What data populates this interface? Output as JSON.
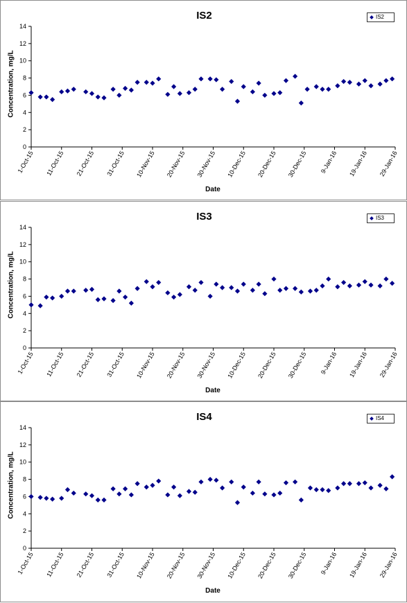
{
  "colors": {
    "marker": "#00008b",
    "axis": "#000000",
    "frame": "#8c8c8c"
  },
  "chart_data": [
    {
      "type": "scatter",
      "title": "IS2",
      "xlabel": "Date",
      "ylabel": "Concentration, mg/L",
      "ylim": [
        0,
        14
      ],
      "y_ticks": [
        "0",
        "2",
        "4",
        "6",
        "8",
        "10",
        "12",
        "14"
      ],
      "x_range": [
        "2015-10-01",
        "2016-01-29"
      ],
      "x_ticks": [
        "1-Oct-15",
        "11-Oct-15",
        "21-Oct-15",
        "31-Oct-15",
        "10-Nov-15",
        "20-Nov-15",
        "30-Nov-15",
        "10-Dec-15",
        "20-Dec-15",
        "30-Dec-15",
        "9-Jan-16",
        "19-Jan-16",
        "29-Jan-16"
      ],
      "legend": "top-right",
      "grid": false,
      "series": [
        {
          "name": "IS2",
          "marker": "diamond",
          "points": [
            {
              "x": "2015-10-01",
              "y": 6.3
            },
            {
              "x": "2015-10-04",
              "y": 5.8
            },
            {
              "x": "2015-10-06",
              "y": 5.8
            },
            {
              "x": "2015-10-08",
              "y": 5.5
            },
            {
              "x": "2015-10-11",
              "y": 6.4
            },
            {
              "x": "2015-10-13",
              "y": 6.5
            },
            {
              "x": "2015-10-15",
              "y": 6.7
            },
            {
              "x": "2015-10-19",
              "y": 6.4
            },
            {
              "x": "2015-10-21",
              "y": 6.2
            },
            {
              "x": "2015-10-23",
              "y": 5.8
            },
            {
              "x": "2015-10-25",
              "y": 5.7
            },
            {
              "x": "2015-10-28",
              "y": 6.7
            },
            {
              "x": "2015-10-30",
              "y": 6.0
            },
            {
              "x": "2015-11-01",
              "y": 6.8
            },
            {
              "x": "2015-11-03",
              "y": 6.6
            },
            {
              "x": "2015-11-05",
              "y": 7.5
            },
            {
              "x": "2015-11-08",
              "y": 7.5
            },
            {
              "x": "2015-11-10",
              "y": 7.4
            },
            {
              "x": "2015-11-12",
              "y": 7.9
            },
            {
              "x": "2015-11-15",
              "y": 6.1
            },
            {
              "x": "2015-11-17",
              "y": 7.0
            },
            {
              "x": "2015-11-19",
              "y": 6.2
            },
            {
              "x": "2015-11-22",
              "y": 6.3
            },
            {
              "x": "2015-11-24",
              "y": 6.7
            },
            {
              "x": "2015-11-26",
              "y": 7.9
            },
            {
              "x": "2015-11-29",
              "y": 7.9
            },
            {
              "x": "2015-12-01",
              "y": 7.8
            },
            {
              "x": "2015-12-03",
              "y": 6.7
            },
            {
              "x": "2015-12-06",
              "y": 7.6
            },
            {
              "x": "2015-12-08",
              "y": 5.3
            },
            {
              "x": "2015-12-10",
              "y": 7.0
            },
            {
              "x": "2015-12-13",
              "y": 6.4
            },
            {
              "x": "2015-12-15",
              "y": 7.4
            },
            {
              "x": "2015-12-17",
              "y": 6.0
            },
            {
              "x": "2015-12-20",
              "y": 6.2
            },
            {
              "x": "2015-12-22",
              "y": 6.3
            },
            {
              "x": "2015-12-24",
              "y": 7.7
            },
            {
              "x": "2015-12-27",
              "y": 8.2
            },
            {
              "x": "2015-12-29",
              "y": 5.1
            },
            {
              "x": "2015-12-31",
              "y": 6.7
            },
            {
              "x": "2016-01-03",
              "y": 7.0
            },
            {
              "x": "2016-01-05",
              "y": 6.7
            },
            {
              "x": "2016-01-07",
              "y": 6.7
            },
            {
              "x": "2016-01-10",
              "y": 7.1
            },
            {
              "x": "2016-01-12",
              "y": 7.6
            },
            {
              "x": "2016-01-14",
              "y": 7.5
            },
            {
              "x": "2016-01-17",
              "y": 7.3
            },
            {
              "x": "2016-01-19",
              "y": 7.7
            },
            {
              "x": "2016-01-21",
              "y": 7.1
            },
            {
              "x": "2016-01-24",
              "y": 7.3
            },
            {
              "x": "2016-01-26",
              "y": 7.7
            },
            {
              "x": "2016-01-28",
              "y": 7.9
            }
          ]
        }
      ]
    },
    {
      "type": "scatter",
      "title": "IS3",
      "xlabel": "Date",
      "ylabel": "Concentration, mg/L",
      "ylim": [
        0,
        14
      ],
      "y_ticks": [
        "0",
        "2",
        "4",
        "6",
        "8",
        "10",
        "12",
        "14"
      ],
      "x_range": [
        "2015-10-01",
        "2016-01-29"
      ],
      "x_ticks": [
        "1-Oct-15",
        "11-Oct-15",
        "21-Oct-15",
        "31-Oct-15",
        "10-Nov-15",
        "20-Nov-15",
        "30-Nov-15",
        "10-Dec-15",
        "20-Dec-15",
        "30-Dec-15",
        "9-Jan-16",
        "19-Jan-16",
        "29-Jan-16"
      ],
      "legend": "top-right",
      "grid": false,
      "series": [
        {
          "name": "IS3",
          "marker": "diamond",
          "points": [
            {
              "x": "2015-10-01",
              "y": 5.0
            },
            {
              "x": "2015-10-04",
              "y": 4.9
            },
            {
              "x": "2015-10-06",
              "y": 5.9
            },
            {
              "x": "2015-10-08",
              "y": 5.8
            },
            {
              "x": "2015-10-11",
              "y": 6.0
            },
            {
              "x": "2015-10-13",
              "y": 6.6
            },
            {
              "x": "2015-10-15",
              "y": 6.6
            },
            {
              "x": "2015-10-19",
              "y": 6.7
            },
            {
              "x": "2015-10-21",
              "y": 6.8
            },
            {
              "x": "2015-10-23",
              "y": 5.6
            },
            {
              "x": "2015-10-25",
              "y": 5.7
            },
            {
              "x": "2015-10-28",
              "y": 5.5
            },
            {
              "x": "2015-10-30",
              "y": 6.6
            },
            {
              "x": "2015-11-01",
              "y": 5.9
            },
            {
              "x": "2015-11-03",
              "y": 5.2
            },
            {
              "x": "2015-11-05",
              "y": 6.9
            },
            {
              "x": "2015-11-08",
              "y": 7.7
            },
            {
              "x": "2015-11-10",
              "y": 7.1
            },
            {
              "x": "2015-11-12",
              "y": 7.6
            },
            {
              "x": "2015-11-15",
              "y": 6.4
            },
            {
              "x": "2015-11-17",
              "y": 5.9
            },
            {
              "x": "2015-11-19",
              "y": 6.2
            },
            {
              "x": "2015-11-22",
              "y": 7.1
            },
            {
              "x": "2015-11-24",
              "y": 6.7
            },
            {
              "x": "2015-11-26",
              "y": 7.6
            },
            {
              "x": "2015-11-29",
              "y": 6.0
            },
            {
              "x": "2015-12-01",
              "y": 7.4
            },
            {
              "x": "2015-12-03",
              "y": 7.0
            },
            {
              "x": "2015-12-06",
              "y": 7.0
            },
            {
              "x": "2015-12-08",
              "y": 6.6
            },
            {
              "x": "2015-12-10",
              "y": 7.4
            },
            {
              "x": "2015-12-13",
              "y": 6.7
            },
            {
              "x": "2015-12-15",
              "y": 7.4
            },
            {
              "x": "2015-12-17",
              "y": 6.3
            },
            {
              "x": "2015-12-20",
              "y": 8.0
            },
            {
              "x": "2015-12-22",
              "y": 6.7
            },
            {
              "x": "2015-12-24",
              "y": 6.9
            },
            {
              "x": "2015-12-27",
              "y": 6.9
            },
            {
              "x": "2015-12-29",
              "y": 6.5
            },
            {
              "x": "2016-01-01",
              "y": 6.6
            },
            {
              "x": "2016-01-03",
              "y": 6.7
            },
            {
              "x": "2016-01-05",
              "y": 7.2
            },
            {
              "x": "2016-01-07",
              "y": 8.0
            },
            {
              "x": "2016-01-10",
              "y": 7.1
            },
            {
              "x": "2016-01-12",
              "y": 7.6
            },
            {
              "x": "2016-01-14",
              "y": 7.2
            },
            {
              "x": "2016-01-17",
              "y": 7.3
            },
            {
              "x": "2016-01-19",
              "y": 7.7
            },
            {
              "x": "2016-01-21",
              "y": 7.3
            },
            {
              "x": "2016-01-24",
              "y": 7.2
            },
            {
              "x": "2016-01-26",
              "y": 8.0
            },
            {
              "x": "2016-01-28",
              "y": 7.5
            }
          ]
        }
      ]
    },
    {
      "type": "scatter",
      "title": "IS4",
      "xlabel": "Date",
      "ylabel": "Concentration, mg/L",
      "ylim": [
        0,
        14
      ],
      "y_ticks": [
        "0",
        "2",
        "4",
        "6",
        "8",
        "10",
        "12",
        "14"
      ],
      "x_range": [
        "2015-10-01",
        "2016-01-29"
      ],
      "x_ticks": [
        "1-Oct-15",
        "11-Oct-15",
        "21-Oct-15",
        "31-Oct-15",
        "10-Nov-15",
        "20-Nov-15",
        "30-Nov-15",
        "10-Dec-15",
        "20-Dec-15",
        "30-Dec-15",
        "9-Jan-16",
        "19-Jan-16",
        "29-Jan-16"
      ],
      "legend": "top-right",
      "grid": false,
      "series": [
        {
          "name": "IS4",
          "marker": "diamond",
          "points": [
            {
              "x": "2015-10-01",
              "y": 6.0
            },
            {
              "x": "2015-10-04",
              "y": 5.9
            },
            {
              "x": "2015-10-06",
              "y": 5.8
            },
            {
              "x": "2015-10-08",
              "y": 5.7
            },
            {
              "x": "2015-10-11",
              "y": 5.8
            },
            {
              "x": "2015-10-13",
              "y": 6.8
            },
            {
              "x": "2015-10-15",
              "y": 6.4
            },
            {
              "x": "2015-10-19",
              "y": 6.3
            },
            {
              "x": "2015-10-21",
              "y": 6.1
            },
            {
              "x": "2015-10-23",
              "y": 5.6
            },
            {
              "x": "2015-10-25",
              "y": 5.6
            },
            {
              "x": "2015-10-28",
              "y": 6.9
            },
            {
              "x": "2015-10-30",
              "y": 6.3
            },
            {
              "x": "2015-11-01",
              "y": 6.9
            },
            {
              "x": "2015-11-03",
              "y": 6.2
            },
            {
              "x": "2015-11-05",
              "y": 7.5
            },
            {
              "x": "2015-11-08",
              "y": 7.1
            },
            {
              "x": "2015-11-10",
              "y": 7.3
            },
            {
              "x": "2015-11-12",
              "y": 7.8
            },
            {
              "x": "2015-11-15",
              "y": 6.2
            },
            {
              "x": "2015-11-17",
              "y": 7.1
            },
            {
              "x": "2015-11-19",
              "y": 6.1
            },
            {
              "x": "2015-11-22",
              "y": 6.6
            },
            {
              "x": "2015-11-24",
              "y": 6.5
            },
            {
              "x": "2015-11-26",
              "y": 7.7
            },
            {
              "x": "2015-11-29",
              "y": 8.0
            },
            {
              "x": "2015-12-01",
              "y": 7.9
            },
            {
              "x": "2015-12-03",
              "y": 7.0
            },
            {
              "x": "2015-12-06",
              "y": 7.7
            },
            {
              "x": "2015-12-08",
              "y": 5.3
            },
            {
              "x": "2015-12-10",
              "y": 7.1
            },
            {
              "x": "2015-12-13",
              "y": 6.4
            },
            {
              "x": "2015-12-15",
              "y": 7.7
            },
            {
              "x": "2015-12-17",
              "y": 6.3
            },
            {
              "x": "2015-12-20",
              "y": 6.2
            },
            {
              "x": "2015-12-22",
              "y": 6.4
            },
            {
              "x": "2015-12-24",
              "y": 7.6
            },
            {
              "x": "2015-12-27",
              "y": 7.7
            },
            {
              "x": "2015-12-29",
              "y": 5.6
            },
            {
              "x": "2016-01-01",
              "y": 7.0
            },
            {
              "x": "2016-01-03",
              "y": 6.8
            },
            {
              "x": "2016-01-05",
              "y": 6.8
            },
            {
              "x": "2016-01-07",
              "y": 6.7
            },
            {
              "x": "2016-01-10",
              "y": 7.0
            },
            {
              "x": "2016-01-12",
              "y": 7.5
            },
            {
              "x": "2016-01-14",
              "y": 7.5
            },
            {
              "x": "2016-01-17",
              "y": 7.5
            },
            {
              "x": "2016-01-19",
              "y": 7.6
            },
            {
              "x": "2016-01-21",
              "y": 7.0
            },
            {
              "x": "2016-01-24",
              "y": 7.3
            },
            {
              "x": "2016-01-26",
              "y": 6.9
            },
            {
              "x": "2016-01-28",
              "y": 8.3
            }
          ]
        }
      ]
    }
  ]
}
